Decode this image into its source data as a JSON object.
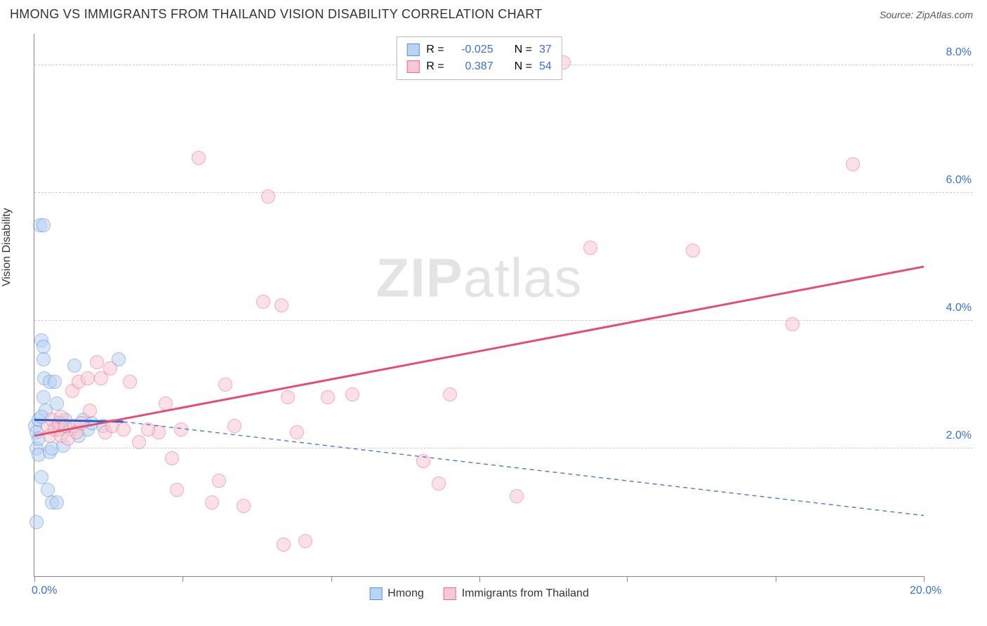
{
  "header": {
    "title": "HMONG VS IMMIGRANTS FROM THAILAND VISION DISABILITY CORRELATION CHART",
    "source": "Source: ZipAtlas.com"
  },
  "watermark": {
    "left": "ZIP",
    "right": "atlas"
  },
  "chart": {
    "type": "scatter",
    "y_label": "Vision Disability",
    "background_color": "#ffffff",
    "grid_color": "#cccccc",
    "axis_color": "#888888",
    "tick_label_color": "#3b6fd6",
    "tick_fontsize": 16,
    "label_fontsize": 16,
    "xlim": [
      0,
      20
    ],
    "ylim": [
      0,
      8.5
    ],
    "x_ticks": [
      0,
      3.33,
      6.67,
      10,
      13.33,
      16.67,
      20
    ],
    "x_tick_labels": {
      "0": "0.0%",
      "20": "20.0%"
    },
    "y_grid": [
      2,
      4,
      6,
      8
    ],
    "y_tick_labels": {
      "2": "2.0%",
      "4": "4.0%",
      "6": "6.0%",
      "8": "8.0%"
    },
    "marker_radius": 10,
    "marker_stroke_width": 1.5,
    "series": [
      {
        "name": "Hmong",
        "fill": "#b9d3f3",
        "stroke": "#5a8fd8",
        "fill_opacity": 0.55,
        "legend_r": "-0.025",
        "legend_n": "37",
        "trend": {
          "x1": 0,
          "y1": 2.45,
          "x2": 2.0,
          "y2": 2.42,
          "stroke": "#2b5fc0",
          "width": 3,
          "dash": "none"
        },
        "trend_ext": {
          "x1": 2.0,
          "y1": 2.42,
          "x2": 20,
          "y2": 0.95,
          "stroke": "#4a7bc8",
          "width": 1.4,
          "dash": "6,5"
        },
        "points": [
          [
            0.02,
            2.35
          ],
          [
            0.05,
            2.25
          ],
          [
            0.05,
            2.0
          ],
          [
            0.1,
            2.45
          ],
          [
            0.1,
            2.15
          ],
          [
            0.1,
            1.9
          ],
          [
            0.12,
            5.5
          ],
          [
            0.2,
            5.5
          ],
          [
            0.15,
            3.7
          ],
          [
            0.2,
            3.6
          ],
          [
            0.2,
            3.4
          ],
          [
            0.22,
            3.1
          ],
          [
            0.2,
            2.8
          ],
          [
            0.25,
            2.6
          ],
          [
            0.35,
            3.05
          ],
          [
            0.15,
            2.5
          ],
          [
            0.15,
            1.55
          ],
          [
            0.3,
            1.35
          ],
          [
            0.4,
            1.15
          ],
          [
            0.5,
            1.15
          ],
          [
            0.05,
            0.85
          ],
          [
            0.35,
            1.95
          ],
          [
            0.4,
            2.0
          ],
          [
            0.55,
            2.3
          ],
          [
            0.6,
            2.4
          ],
          [
            0.65,
            2.05
          ],
          [
            0.7,
            2.45
          ],
          [
            0.8,
            2.3
          ],
          [
            0.9,
            3.3
          ],
          [
            1.0,
            2.2
          ],
          [
            1.1,
            2.45
          ],
          [
            1.2,
            2.3
          ],
          [
            1.3,
            2.4
          ],
          [
            1.55,
            2.35
          ],
          [
            1.9,
            3.4
          ],
          [
            0.45,
            3.05
          ],
          [
            0.5,
            2.7
          ]
        ]
      },
      {
        "name": "Immigants from Thailand",
        "legend_label": "Immigrants from Thailand",
        "fill": "#f8c9d4",
        "stroke": "#e86a8a",
        "fill_opacity": 0.55,
        "legend_r": "0.387",
        "legend_n": "54",
        "trend": {
          "x1": 0,
          "y1": 2.2,
          "x2": 20,
          "y2": 4.85,
          "stroke": "#e44d76",
          "width": 3,
          "dash": "none"
        },
        "points": [
          [
            0.3,
            2.35
          ],
          [
            0.35,
            2.2
          ],
          [
            0.4,
            2.45
          ],
          [
            0.45,
            2.3
          ],
          [
            0.55,
            2.4
          ],
          [
            0.6,
            2.2
          ],
          [
            0.6,
            2.5
          ],
          [
            0.7,
            2.35
          ],
          [
            0.75,
            2.15
          ],
          [
            0.85,
            2.9
          ],
          [
            0.9,
            2.35
          ],
          [
            0.95,
            2.25
          ],
          [
            1.0,
            3.05
          ],
          [
            1.05,
            2.4
          ],
          [
            1.2,
            3.1
          ],
          [
            1.25,
            2.6
          ],
          [
            1.4,
            3.35
          ],
          [
            1.5,
            3.1
          ],
          [
            1.6,
            2.25
          ],
          [
            1.7,
            3.25
          ],
          [
            1.75,
            2.35
          ],
          [
            2.0,
            2.3
          ],
          [
            2.15,
            3.05
          ],
          [
            2.8,
            2.25
          ],
          [
            2.95,
            2.7
          ],
          [
            3.1,
            1.85
          ],
          [
            3.2,
            1.35
          ],
          [
            3.3,
            2.3
          ],
          [
            3.7,
            6.55
          ],
          [
            4.0,
            1.15
          ],
          [
            4.15,
            1.5
          ],
          [
            4.3,
            3.0
          ],
          [
            4.5,
            2.35
          ],
          [
            4.7,
            1.1
          ],
          [
            5.15,
            4.3
          ],
          [
            5.25,
            5.95
          ],
          [
            5.55,
            4.25
          ],
          [
            5.6,
            0.5
          ],
          [
            5.7,
            2.8
          ],
          [
            5.9,
            2.25
          ],
          [
            6.1,
            0.55
          ],
          [
            6.6,
            2.8
          ],
          [
            7.15,
            2.85
          ],
          [
            8.75,
            1.8
          ],
          [
            9.1,
            1.45
          ],
          [
            9.35,
            2.85
          ],
          [
            10.85,
            1.25
          ],
          [
            11.9,
            8.05
          ],
          [
            12.5,
            5.15
          ],
          [
            14.8,
            5.1
          ],
          [
            17.05,
            3.95
          ],
          [
            18.4,
            6.45
          ],
          [
            2.35,
            2.1
          ],
          [
            2.55,
            2.3
          ]
        ]
      }
    ],
    "legend_top": {
      "border_color": "#bbbbbb",
      "r_label": "R =",
      "n_label": "N =",
      "value_color": "#3b6fd6"
    },
    "legend_bottom": {
      "items": [
        "Hmong",
        "Immigrants from Thailand"
      ]
    }
  }
}
